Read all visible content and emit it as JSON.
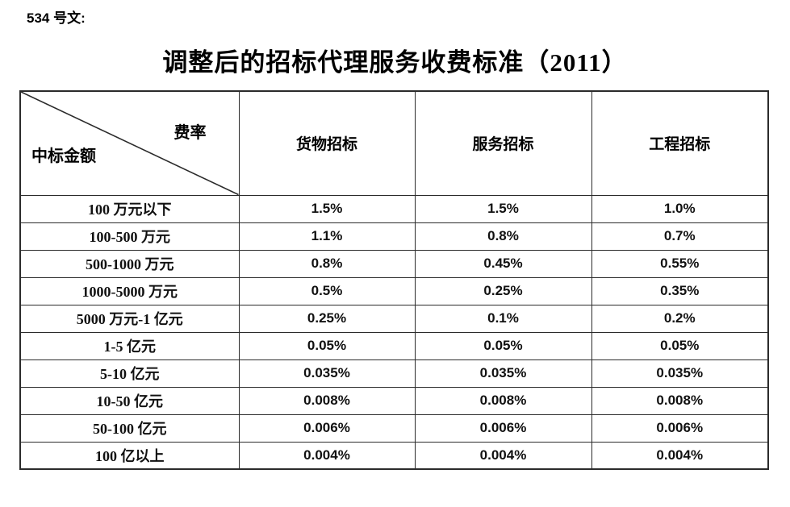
{
  "document": {
    "ref_label": "534 号文:",
    "title": "调整后的招标代理服务收费标准（2011）"
  },
  "table": {
    "corner": {
      "top_right": "费率",
      "bottom_left": "中标金额"
    },
    "columns": [
      "货物招标",
      "服务招标",
      "工程招标"
    ],
    "rows": [
      {
        "label": "100 万元以下",
        "values": [
          "1.5%",
          "1.5%",
          "1.0%"
        ]
      },
      {
        "label": "100-500 万元",
        "values": [
          "1.1%",
          "0.8%",
          "0.7%"
        ]
      },
      {
        "label": "500-1000 万元",
        "values": [
          "0.8%",
          "0.45%",
          "0.55%"
        ]
      },
      {
        "label": "1000-5000 万元",
        "values": [
          "0.5%",
          "0.25%",
          "0.35%"
        ]
      },
      {
        "label": "5000 万元-1 亿元",
        "values": [
          "0.25%",
          "0.1%",
          "0.2%"
        ]
      },
      {
        "label": "1-5 亿元",
        "values": [
          "0.05%",
          "0.05%",
          "0.05%"
        ]
      },
      {
        "label": "5-10 亿元",
        "values": [
          "0.035%",
          "0.035%",
          "0.035%"
        ]
      },
      {
        "label": "10-50 亿元",
        "values": [
          "0.008%",
          "0.008%",
          "0.008%"
        ]
      },
      {
        "label": "50-100 亿元",
        "values": [
          "0.006%",
          "0.006%",
          "0.006%"
        ]
      },
      {
        "label": "100 亿以上",
        "values": [
          "0.004%",
          "0.004%",
          "0.004%"
        ]
      }
    ],
    "border_color": "#2b2b2b",
    "text_color": "#111111"
  }
}
